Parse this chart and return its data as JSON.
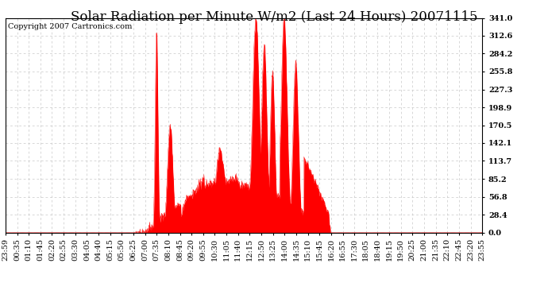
{
  "title": "Solar Radiation per Minute W/m2 (Last 24 Hours) 20071115",
  "copyright_text": "Copyright 2007 Cartronics.com",
  "fill_color": "#ff0000",
  "line_color": "#ff0000",
  "background_color": "#ffffff",
  "plot_bg_color": "#ffffff",
  "grid_color": "#c8c8c8",
  "dashed_line_color": "#ff0000",
  "y_tick_labels": [
    "0.0",
    "28.4",
    "56.8",
    "85.2",
    "113.7",
    "142.1",
    "170.5",
    "198.9",
    "227.3",
    "255.8",
    "284.2",
    "312.6",
    "341.0"
  ],
  "y_tick_values": [
    0.0,
    28.4,
    56.8,
    85.2,
    113.7,
    142.1,
    170.5,
    198.9,
    227.3,
    255.8,
    284.2,
    312.6,
    341.0
  ],
  "ylim": [
    0.0,
    341.0
  ],
  "x_labels": [
    "23:59",
    "00:35",
    "01:10",
    "01:45",
    "02:20",
    "02:55",
    "03:30",
    "04:05",
    "04:40",
    "05:15",
    "05:50",
    "06:25",
    "07:00",
    "07:35",
    "08:10",
    "08:45",
    "09:20",
    "09:55",
    "10:30",
    "11:05",
    "11:40",
    "12:15",
    "12:50",
    "13:25",
    "14:00",
    "14:35",
    "15:10",
    "15:45",
    "16:20",
    "16:55",
    "17:30",
    "18:05",
    "18:40",
    "19:15",
    "19:50",
    "20:25",
    "21:00",
    "21:35",
    "22:10",
    "22:45",
    "23:20",
    "23:55"
  ],
  "title_fontsize": 12,
  "copyright_fontsize": 7,
  "tick_fontsize": 7,
  "x_label_rotation": 90
}
